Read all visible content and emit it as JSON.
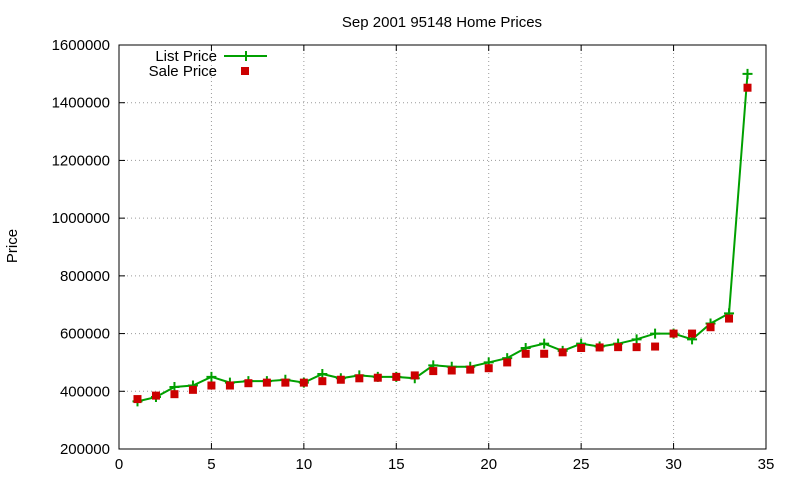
{
  "chart_data": {
    "type": "line",
    "title": "Sep 2001 95148 Home Prices",
    "xlabel": "",
    "ylabel": "Price",
    "xlim": [
      0,
      35
    ],
    "ylim": [
      200000,
      1600000
    ],
    "xticks": [
      "0",
      "5",
      "10",
      "15",
      "20",
      "25",
      "30",
      "35"
    ],
    "yticks": [
      "200000",
      "400000",
      "600000",
      "800000",
      "1000000",
      "1200000",
      "1400000",
      "1600000"
    ],
    "grid": true,
    "legend_position": "top-left",
    "x": [
      1,
      2,
      3,
      4,
      5,
      6,
      7,
      8,
      9,
      10,
      11,
      12,
      13,
      14,
      15,
      16,
      17,
      18,
      19,
      20,
      21,
      22,
      23,
      24,
      25,
      26,
      27,
      28,
      29,
      30,
      31,
      32,
      33,
      34
    ],
    "series": [
      {
        "name": "List Price",
        "style": "line-plus",
        "color": "#00a000",
        "values": [
          365000,
          380000,
          415000,
          420000,
          450000,
          430000,
          435000,
          435000,
          440000,
          430000,
          460000,
          445000,
          455000,
          450000,
          450000,
          445000,
          490000,
          485000,
          485000,
          500000,
          515000,
          550000,
          565000,
          540000,
          565000,
          555000,
          565000,
          580000,
          600000,
          600000,
          580000,
          635000,
          670000,
          1500000
        ]
      },
      {
        "name": "Sale Price",
        "style": "square",
        "color": "#cc0000",
        "values": [
          373000,
          385000,
          390000,
          405000,
          420000,
          420000,
          428000,
          430000,
          430000,
          430000,
          435000,
          440000,
          445000,
          447000,
          450000,
          455000,
          470000,
          472000,
          475000,
          480000,
          500000,
          530000,
          530000,
          535000,
          550000,
          552000,
          553000,
          553000,
          555000,
          600000,
          600000,
          622000,
          652000,
          1452000
        ]
      }
    ]
  }
}
